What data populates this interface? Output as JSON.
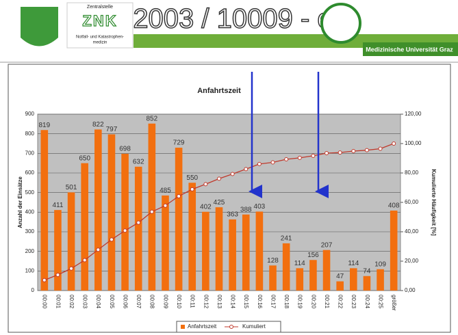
{
  "header": {
    "org_top": "Zentralstelle",
    "org_abbr": "ZNK",
    "org_sub_1": "Notfall- und Katastrophen-",
    "org_sub_2": "medizin",
    "title": "2003 / 10009 - e",
    "university": "Medizinische Universität Graz"
  },
  "chart_data": {
    "type": "bar",
    "title": "Anfahrtszeit",
    "y_label": "Anzahl der Einsätze",
    "y2_label": "Kumulierte Häufigkeit [%]",
    "categories": [
      "00:00",
      "00:01",
      "00:02",
      "00:03",
      "00:04",
      "00:05",
      "00:06",
      "00:07",
      "00:08",
      "00:09",
      "00:10",
      "00:11",
      "00:12",
      "00:13",
      "00:14",
      "00:15",
      "00:16",
      "00:17",
      "00:18",
      "00:19",
      "00:20",
      "00:21",
      "00:22",
      "00:23",
      "00:24",
      "00:25",
      "größer"
    ],
    "series": [
      {
        "name": "Anfahrtszeit",
        "color": "#f26f0f",
        "values": [
          819,
          411,
          501,
          650,
          822,
          797,
          698,
          632,
          852,
          485,
          729,
          550,
          402,
          425,
          363,
          388,
          403,
          128,
          241,
          114,
          156,
          207,
          47,
          114,
          74,
          109,
          408
        ]
      },
      {
        "name": "Kumuliert",
        "color": "#c0392b",
        "axis": "y2",
        "type": "line",
        "values": [
          7.1,
          10.7,
          15.0,
          20.7,
          27.8,
          34.7,
          40.8,
          46.2,
          53.6,
          57.8,
          64.2,
          68.9,
          72.4,
          76.1,
          79.3,
          82.6,
          86.1,
          87.2,
          89.3,
          90.3,
          91.7,
          93.5,
          93.9,
          94.9,
          95.5,
          96.5,
          100
        ]
      }
    ],
    "ylim": [
      0,
      900
    ],
    "yticks": [
      0,
      100,
      200,
      300,
      400,
      500,
      600,
      700,
      800,
      900
    ],
    "y2lim": [
      0,
      120
    ],
    "y2ticks": [
      {
        "value": 0,
        "label": "0,00"
      },
      {
        "value": 20,
        "label": "20,00"
      },
      {
        "value": 40,
        "label": "40,00"
      },
      {
        "value": 60,
        "label": "60,00"
      },
      {
        "value": 80,
        "label": "80,00"
      },
      {
        "value": 100,
        "label": "100,00"
      },
      {
        "value": 120,
        "label": "120,00"
      }
    ],
    "grid": true,
    "legend": "bottom",
    "plot_background": "#c0c0c0"
  }
}
